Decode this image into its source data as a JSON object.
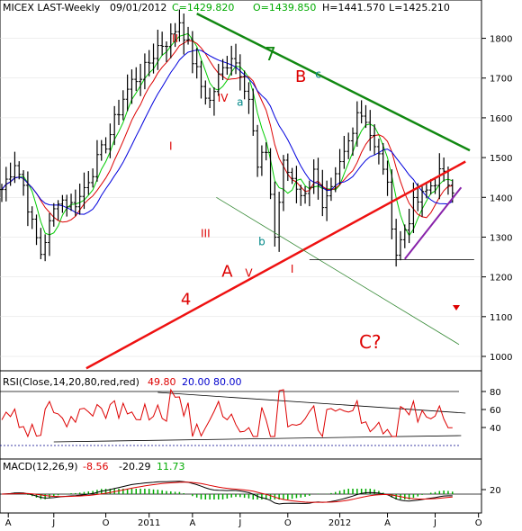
{
  "header": {
    "symbol": "MICEX LAST-Weekly",
    "date": "09/01/2012",
    "close": "C=1429.820",
    "open": "O=1439.850",
    "high": "H=1441.570",
    "low": "L=1425.210"
  },
  "colors": {
    "background": "#ffffff",
    "price_bars": "#000000",
    "ma_green": "#00cc00",
    "ma_red": "#dd0000",
    "ma_blue": "#0000dd",
    "trend_red": "#ee1111",
    "trend_green": "#118811",
    "trend_thin_green": "#338833",
    "trend_purple": "#8822aa",
    "label_red": "#dd0000",
    "label_teal": "#008888",
    "rsi_line": "#dd0000",
    "macd_line": "#000000",
    "signal_line": "#dd0000",
    "histogram": "#00aa00",
    "dotted_ref": "#000088"
  },
  "chart_data": [
    {
      "type": "candlestick",
      "panel": "price",
      "x_ticks": [
        "A",
        "J",
        "O",
        "2011",
        "A",
        "J",
        "O",
        "2012",
        "A",
        "J",
        "O"
      ],
      "y_ticks": [
        1000,
        1100,
        1200,
        1300,
        1400,
        1500,
        1600,
        1700,
        1800
      ],
      "ylim": [
        940,
        1880
      ],
      "x_range_weeks": [
        0,
        108
      ],
      "moving_averages": [
        "green",
        "red",
        "blue"
      ],
      "horizontal_support": 1243,
      "wave_labels": [
        {
          "text": "II",
          "color": "red"
        },
        {
          "text": "I",
          "color": "red"
        },
        {
          "text": "III",
          "color": "red"
        },
        {
          "text": "IV",
          "color": "red"
        },
        {
          "text": "a",
          "color": "teal"
        },
        {
          "text": "b",
          "color": "teal"
        },
        {
          "text": "A",
          "color": "red"
        },
        {
          "text": "V",
          "color": "red"
        },
        {
          "text": "B",
          "color": "red"
        },
        {
          "text": "c",
          "color": "teal"
        },
        {
          "text": "7",
          "color": "green"
        },
        {
          "text": "4",
          "color": "red"
        },
        {
          "text": "I",
          "color": "red"
        },
        {
          "text": "C?",
          "color": "red"
        }
      ]
    },
    {
      "type": "line",
      "panel": "rsi",
      "title": "RSI(Close,14,20,80,red,red)",
      "current_value": "49.80",
      "lower_level": "20.00",
      "upper_level": "80.00",
      "y_ticks": [
        40,
        60,
        80
      ],
      "ylim": [
        15,
        90
      ]
    },
    {
      "type": "line",
      "panel": "macd",
      "title": "MACD(12,26,9)",
      "macd": "-8.56",
      "signal": "-20.29",
      "histogram": "11.73",
      "y_ticks": [
        20
      ]
    }
  ]
}
